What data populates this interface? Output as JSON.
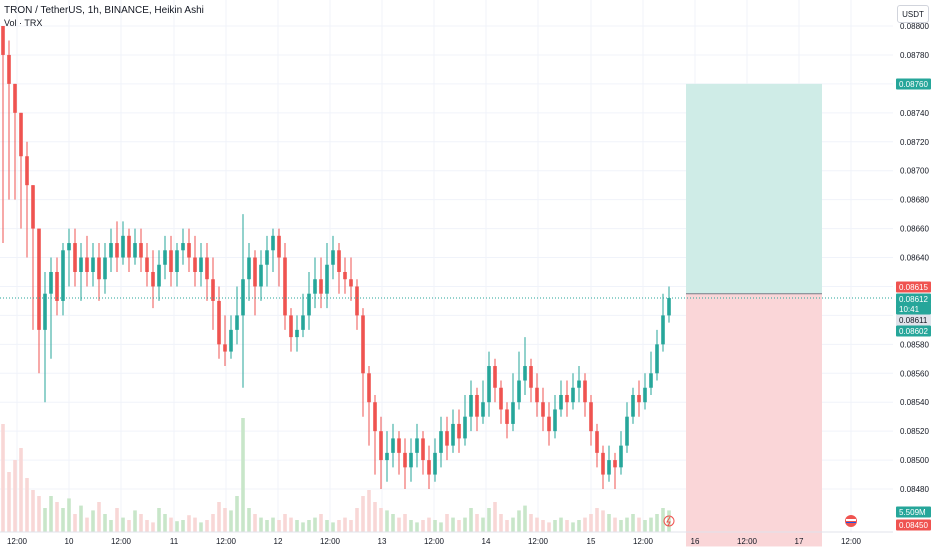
{
  "header": {
    "title": "TRON / TetherUS, 1h, BINANCE, Heikin Ashi",
    "subtitle": "Vol · TRX",
    "currency_button": "USDT"
  },
  "colors": {
    "up": "#26a69a",
    "down": "#ef5350",
    "up_vol": "#c8e6c9",
    "down_vol": "#f8d7d6",
    "profit_zone": "#cfece7",
    "loss_zone": "#fad6d8",
    "grid": "#f0f3fa",
    "axis_text": "#131722"
  },
  "chart_data": {
    "type": "candlestick",
    "symbol": "TRON / TetherUS",
    "interval": "1h",
    "exchange": "BINANCE",
    "style": "Heikin Ashi",
    "y_axis": {
      "ticks": [
        "0.08800",
        "0.08780",
        "0.08760",
        "0.08740",
        "0.08720",
        "0.08700",
        "0.08680",
        "0.08660",
        "0.08640",
        "0.08620",
        "0.08600",
        "0.08580",
        "0.08560",
        "0.08540",
        "0.08520",
        "0.08500",
        "0.08480"
      ],
      "range": [
        0.08465,
        0.08805
      ]
    },
    "x_axis": {
      "ticks": [
        "12:00",
        "10",
        "12:00",
        "11",
        "12:00",
        "12",
        "12:00",
        "13",
        "12:00",
        "14",
        "12:00",
        "15",
        "12:00",
        "16",
        "12:00",
        "17",
        "12:00"
      ]
    },
    "price_labels": [
      {
        "text": "0.08760",
        "color": "#26a69a"
      },
      {
        "text": "0.08615",
        "color": "#ef5350"
      },
      {
        "text": "0.08612",
        "color": "#26a69a"
      },
      {
        "text": "10:41",
        "color": "#26a69a"
      },
      {
        "text": "0.08611",
        "color": "#131722"
      },
      {
        "text": "0.08602",
        "color": "#26a69a"
      },
      {
        "text": "5.509M",
        "color": "#26a69a"
      },
      {
        "text": "0.08450",
        "color": "#ef5350"
      }
    ],
    "position": {
      "entry": 0.08615,
      "target": 0.0876,
      "stop": 0.0845
    },
    "last_price": 0.08612,
    "volume_last": "5.509M",
    "candles": [
      {
        "o": 0.088,
        "c": 0.0878,
        "h": 0.088,
        "l": 0.0865
      },
      {
        "o": 0.0878,
        "c": 0.0876,
        "h": 0.0879,
        "l": 0.0868
      },
      {
        "o": 0.0876,
        "c": 0.0874,
        "h": 0.0876,
        "l": 0.0868
      },
      {
        "o": 0.0874,
        "c": 0.0871,
        "h": 0.0874,
        "l": 0.0866
      },
      {
        "o": 0.0871,
        "c": 0.0869,
        "h": 0.0872,
        "l": 0.0864
      },
      {
        "o": 0.0869,
        "c": 0.0866,
        "h": 0.0869,
        "l": 0.0859
      },
      {
        "o": 0.0866,
        "c": 0.0859,
        "h": 0.0866,
        "l": 0.0856
      },
      {
        "o": 0.0859,
        "c": 0.08615,
        "h": 0.0863,
        "l": 0.0854
      },
      {
        "o": 0.08615,
        "c": 0.0863,
        "h": 0.0864,
        "l": 0.0857
      },
      {
        "o": 0.0863,
        "c": 0.0861,
        "h": 0.0864,
        "l": 0.086
      },
      {
        "o": 0.0861,
        "c": 0.08645,
        "h": 0.0865,
        "l": 0.086
      },
      {
        "o": 0.08645,
        "c": 0.0865,
        "h": 0.0866,
        "l": 0.0862
      },
      {
        "o": 0.0865,
        "c": 0.0863,
        "h": 0.0866,
        "l": 0.0862
      },
      {
        "o": 0.0863,
        "c": 0.0864,
        "h": 0.0865,
        "l": 0.0861
      },
      {
        "o": 0.0864,
        "c": 0.0863,
        "h": 0.08655,
        "l": 0.0862
      },
      {
        "o": 0.0863,
        "c": 0.0864,
        "h": 0.0865,
        "l": 0.0862
      },
      {
        "o": 0.0864,
        "c": 0.08625,
        "h": 0.0865,
        "l": 0.0861
      },
      {
        "o": 0.08625,
        "c": 0.0864,
        "h": 0.0865,
        "l": 0.08615
      },
      {
        "o": 0.0864,
        "c": 0.0865,
        "h": 0.0866,
        "l": 0.0863
      },
      {
        "o": 0.0865,
        "c": 0.0864,
        "h": 0.08665,
        "l": 0.0863
      },
      {
        "o": 0.0864,
        "c": 0.08655,
        "h": 0.08665,
        "l": 0.08635
      },
      {
        "o": 0.08655,
        "c": 0.0864,
        "h": 0.0866,
        "l": 0.0863
      },
      {
        "o": 0.0864,
        "c": 0.0865,
        "h": 0.0866,
        "l": 0.08635
      },
      {
        "o": 0.0865,
        "c": 0.0864,
        "h": 0.0866,
        "l": 0.0863
      },
      {
        "o": 0.0864,
        "c": 0.0863,
        "h": 0.0865,
        "l": 0.0862
      },
      {
        "o": 0.0863,
        "c": 0.0862,
        "h": 0.08645,
        "l": 0.08605
      },
      {
        "o": 0.0862,
        "c": 0.08635,
        "h": 0.08645,
        "l": 0.0861
      },
      {
        "o": 0.08635,
        "c": 0.08645,
        "h": 0.08655,
        "l": 0.08625
      },
      {
        "o": 0.08645,
        "c": 0.0863,
        "h": 0.08655,
        "l": 0.0862
      },
      {
        "o": 0.0863,
        "c": 0.08645,
        "h": 0.0865,
        "l": 0.0862
      },
      {
        "o": 0.08645,
        "c": 0.0865,
        "h": 0.0866,
        "l": 0.08635
      },
      {
        "o": 0.0865,
        "c": 0.0864,
        "h": 0.0866,
        "l": 0.0863
      },
      {
        "o": 0.0864,
        "c": 0.0863,
        "h": 0.08655,
        "l": 0.0862
      },
      {
        "o": 0.0863,
        "c": 0.0864,
        "h": 0.0865,
        "l": 0.0862
      },
      {
        "o": 0.0864,
        "c": 0.08625,
        "h": 0.0865,
        "l": 0.0861
      },
      {
        "o": 0.08625,
        "c": 0.0861,
        "h": 0.0864,
        "l": 0.0859
      },
      {
        "o": 0.0861,
        "c": 0.0858,
        "h": 0.0862,
        "l": 0.0857
      },
      {
        "o": 0.0858,
        "c": 0.08575,
        "h": 0.086,
        "l": 0.08565
      },
      {
        "o": 0.08575,
        "c": 0.0859,
        "h": 0.086,
        "l": 0.0857
      },
      {
        "o": 0.0859,
        "c": 0.086,
        "h": 0.0862,
        "l": 0.0858
      },
      {
        "o": 0.086,
        "c": 0.08625,
        "h": 0.0867,
        "l": 0.0855
      },
      {
        "o": 0.08625,
        "c": 0.0864,
        "h": 0.0865,
        "l": 0.0861
      },
      {
        "o": 0.0864,
        "c": 0.0862,
        "h": 0.08645,
        "l": 0.086
      },
      {
        "o": 0.0862,
        "c": 0.08635,
        "h": 0.08645,
        "l": 0.0861
      },
      {
        "o": 0.08635,
        "c": 0.08645,
        "h": 0.08655,
        "l": 0.0862
      },
      {
        "o": 0.08645,
        "c": 0.08655,
        "h": 0.0866,
        "l": 0.0863
      },
      {
        "o": 0.08655,
        "c": 0.0864,
        "h": 0.0866,
        "l": 0.0862
      },
      {
        "o": 0.0864,
        "c": 0.086,
        "h": 0.0865,
        "l": 0.0859
      },
      {
        "o": 0.086,
        "c": 0.08585,
        "h": 0.08605,
        "l": 0.08575
      },
      {
        "o": 0.08585,
        "c": 0.0859,
        "h": 0.086,
        "l": 0.08575
      },
      {
        "o": 0.0859,
        "c": 0.086,
        "h": 0.08615,
        "l": 0.08585
      },
      {
        "o": 0.086,
        "c": 0.08615,
        "h": 0.0863,
        "l": 0.0859
      },
      {
        "o": 0.08615,
        "c": 0.08625,
        "h": 0.0864,
        "l": 0.08605
      },
      {
        "o": 0.08625,
        "c": 0.08615,
        "h": 0.0864,
        "l": 0.08605
      },
      {
        "o": 0.08615,
        "c": 0.08635,
        "h": 0.0865,
        "l": 0.08605
      },
      {
        "o": 0.08635,
        "c": 0.08645,
        "h": 0.08655,
        "l": 0.08625
      },
      {
        "o": 0.08645,
        "c": 0.0863,
        "h": 0.0865,
        "l": 0.08615
      },
      {
        "o": 0.0863,
        "c": 0.08625,
        "h": 0.0864,
        "l": 0.08615
      },
      {
        "o": 0.08625,
        "c": 0.0862,
        "h": 0.0864,
        "l": 0.0861
      },
      {
        "o": 0.0862,
        "c": 0.086,
        "h": 0.08625,
        "l": 0.0859
      },
      {
        "o": 0.086,
        "c": 0.0856,
        "h": 0.08605,
        "l": 0.0853
      },
      {
        "o": 0.0856,
        "c": 0.0854,
        "h": 0.08565,
        "l": 0.0851
      },
      {
        "o": 0.0854,
        "c": 0.0852,
        "h": 0.08545,
        "l": 0.0849
      },
      {
        "o": 0.0852,
        "c": 0.085,
        "h": 0.0853,
        "l": 0.0848
      },
      {
        "o": 0.085,
        "c": 0.08505,
        "h": 0.0852,
        "l": 0.08485
      },
      {
        "o": 0.08505,
        "c": 0.08515,
        "h": 0.08525,
        "l": 0.08495
      },
      {
        "o": 0.08515,
        "c": 0.08505,
        "h": 0.0852,
        "l": 0.0849
      },
      {
        "o": 0.08505,
        "c": 0.08495,
        "h": 0.08515,
        "l": 0.0848
      },
      {
        "o": 0.08495,
        "c": 0.08505,
        "h": 0.08515,
        "l": 0.08485
      },
      {
        "o": 0.08505,
        "c": 0.08515,
        "h": 0.08525,
        "l": 0.08495
      },
      {
        "o": 0.08515,
        "c": 0.085,
        "h": 0.0852,
        "l": 0.0849
      },
      {
        "o": 0.085,
        "c": 0.0849,
        "h": 0.0851,
        "l": 0.0848
      },
      {
        "o": 0.0849,
        "c": 0.08505,
        "h": 0.08515,
        "l": 0.08485
      },
      {
        "o": 0.08505,
        "c": 0.0852,
        "h": 0.0853,
        "l": 0.08495
      },
      {
        "o": 0.0852,
        "c": 0.0851,
        "h": 0.0853,
        "l": 0.085
      },
      {
        "o": 0.0851,
        "c": 0.08525,
        "h": 0.08535,
        "l": 0.08505
      },
      {
        "o": 0.08525,
        "c": 0.08515,
        "h": 0.08535,
        "l": 0.08505
      },
      {
        "o": 0.08515,
        "c": 0.0853,
        "h": 0.08545,
        "l": 0.0851
      },
      {
        "o": 0.0853,
        "c": 0.08545,
        "h": 0.08555,
        "l": 0.0852
      },
      {
        "o": 0.08545,
        "c": 0.0853,
        "h": 0.0855,
        "l": 0.0852
      },
      {
        "o": 0.0853,
        "c": 0.0854,
        "h": 0.08555,
        "l": 0.08525
      },
      {
        "o": 0.0854,
        "c": 0.08565,
        "h": 0.08575,
        "l": 0.0853
      },
      {
        "o": 0.08565,
        "c": 0.0855,
        "h": 0.0857,
        "l": 0.0854
      },
      {
        "o": 0.0855,
        "c": 0.08535,
        "h": 0.08555,
        "l": 0.08525
      },
      {
        "o": 0.08535,
        "c": 0.08525,
        "h": 0.0854,
        "l": 0.08515
      },
      {
        "o": 0.08525,
        "c": 0.0854,
        "h": 0.0856,
        "l": 0.0852
      },
      {
        "o": 0.0854,
        "c": 0.08555,
        "h": 0.08575,
        "l": 0.08535
      },
      {
        "o": 0.08555,
        "c": 0.08565,
        "h": 0.08585,
        "l": 0.08545
      },
      {
        "o": 0.08565,
        "c": 0.0855,
        "h": 0.0857,
        "l": 0.0854
      },
      {
        "o": 0.0855,
        "c": 0.0854,
        "h": 0.0856,
        "l": 0.0853
      },
      {
        "o": 0.0854,
        "c": 0.0853,
        "h": 0.0855,
        "l": 0.0852
      },
      {
        "o": 0.0853,
        "c": 0.0852,
        "h": 0.0854,
        "l": 0.0851
      },
      {
        "o": 0.0852,
        "c": 0.08535,
        "h": 0.08545,
        "l": 0.08515
      },
      {
        "o": 0.08535,
        "c": 0.08545,
        "h": 0.08555,
        "l": 0.0853
      },
      {
        "o": 0.08545,
        "c": 0.0854,
        "h": 0.08555,
        "l": 0.0853
      },
      {
        "o": 0.0854,
        "c": 0.0855,
        "h": 0.0856,
        "l": 0.08535
      },
      {
        "o": 0.0855,
        "c": 0.08555,
        "h": 0.08565,
        "l": 0.0854
      },
      {
        "o": 0.08555,
        "c": 0.0854,
        "h": 0.0856,
        "l": 0.0853
      },
      {
        "o": 0.0854,
        "c": 0.0852,
        "h": 0.08545,
        "l": 0.0851
      },
      {
        "o": 0.0852,
        "c": 0.08505,
        "h": 0.08525,
        "l": 0.08495
      },
      {
        "o": 0.08505,
        "c": 0.0849,
        "h": 0.0851,
        "l": 0.0848
      },
      {
        "o": 0.0849,
        "c": 0.085,
        "h": 0.0851,
        "l": 0.08485
      },
      {
        "o": 0.085,
        "c": 0.08495,
        "h": 0.08505,
        "l": 0.0848
      },
      {
        "o": 0.08495,
        "c": 0.0851,
        "h": 0.0852,
        "l": 0.0849
      },
      {
        "o": 0.0851,
        "c": 0.0853,
        "h": 0.0854,
        "l": 0.08505
      },
      {
        "o": 0.0853,
        "c": 0.08545,
        "h": 0.0855,
        "l": 0.08525
      },
      {
        "o": 0.08545,
        "c": 0.0854,
        "h": 0.08555,
        "l": 0.0853
      },
      {
        "o": 0.0854,
        "c": 0.0855,
        "h": 0.0856,
        "l": 0.08535
      },
      {
        "o": 0.0855,
        "c": 0.0856,
        "h": 0.08575,
        "l": 0.08545
      },
      {
        "o": 0.0856,
        "c": 0.0858,
        "h": 0.0859,
        "l": 0.08555
      },
      {
        "o": 0.0858,
        "c": 0.086,
        "h": 0.08615,
        "l": 0.08575
      },
      {
        "o": 0.086,
        "c": 0.08612,
        "h": 0.0862,
        "l": 0.08595
      }
    ],
    "volumes": [
      0.9,
      0.5,
      0.6,
      0.7,
      0.45,
      0.35,
      0.3,
      0.2,
      0.3,
      0.25,
      0.2,
      0.28,
      0.15,
      0.22,
      0.12,
      0.18,
      0.25,
      0.15,
      0.1,
      0.2,
      0.12,
      0.1,
      0.18,
      0.15,
      0.1,
      0.08,
      0.2,
      0.15,
      0.12,
      0.09,
      0.1,
      0.14,
      0.12,
      0.08,
      0.1,
      0.15,
      0.25,
      0.2,
      0.18,
      0.3,
      0.95,
      0.2,
      0.15,
      0.12,
      0.1,
      0.12,
      0.1,
      0.15,
      0.12,
      0.1,
      0.08,
      0.1,
      0.12,
      0.15,
      0.1,
      0.08,
      0.1,
      0.12,
      0.1,
      0.2,
      0.3,
      0.35,
      0.25,
      0.2,
      0.18,
      0.15,
      0.12,
      0.15,
      0.1,
      0.08,
      0.1,
      0.12,
      0.1,
      0.08,
      0.15,
      0.12,
      0.1,
      0.12,
      0.2,
      0.15,
      0.12,
      0.2,
      0.25,
      0.15,
      0.1,
      0.12,
      0.18,
      0.22,
      0.15,
      0.12,
      0.1,
      0.08,
      0.1,
      0.12,
      0.1,
      0.08,
      0.1,
      0.12,
      0.15,
      0.2,
      0.18,
      0.15,
      0.12,
      0.1,
      0.12,
      0.15,
      0.12,
      0.1,
      0.12,
      0.15,
      0.2,
      0.18,
      0.15
    ]
  }
}
